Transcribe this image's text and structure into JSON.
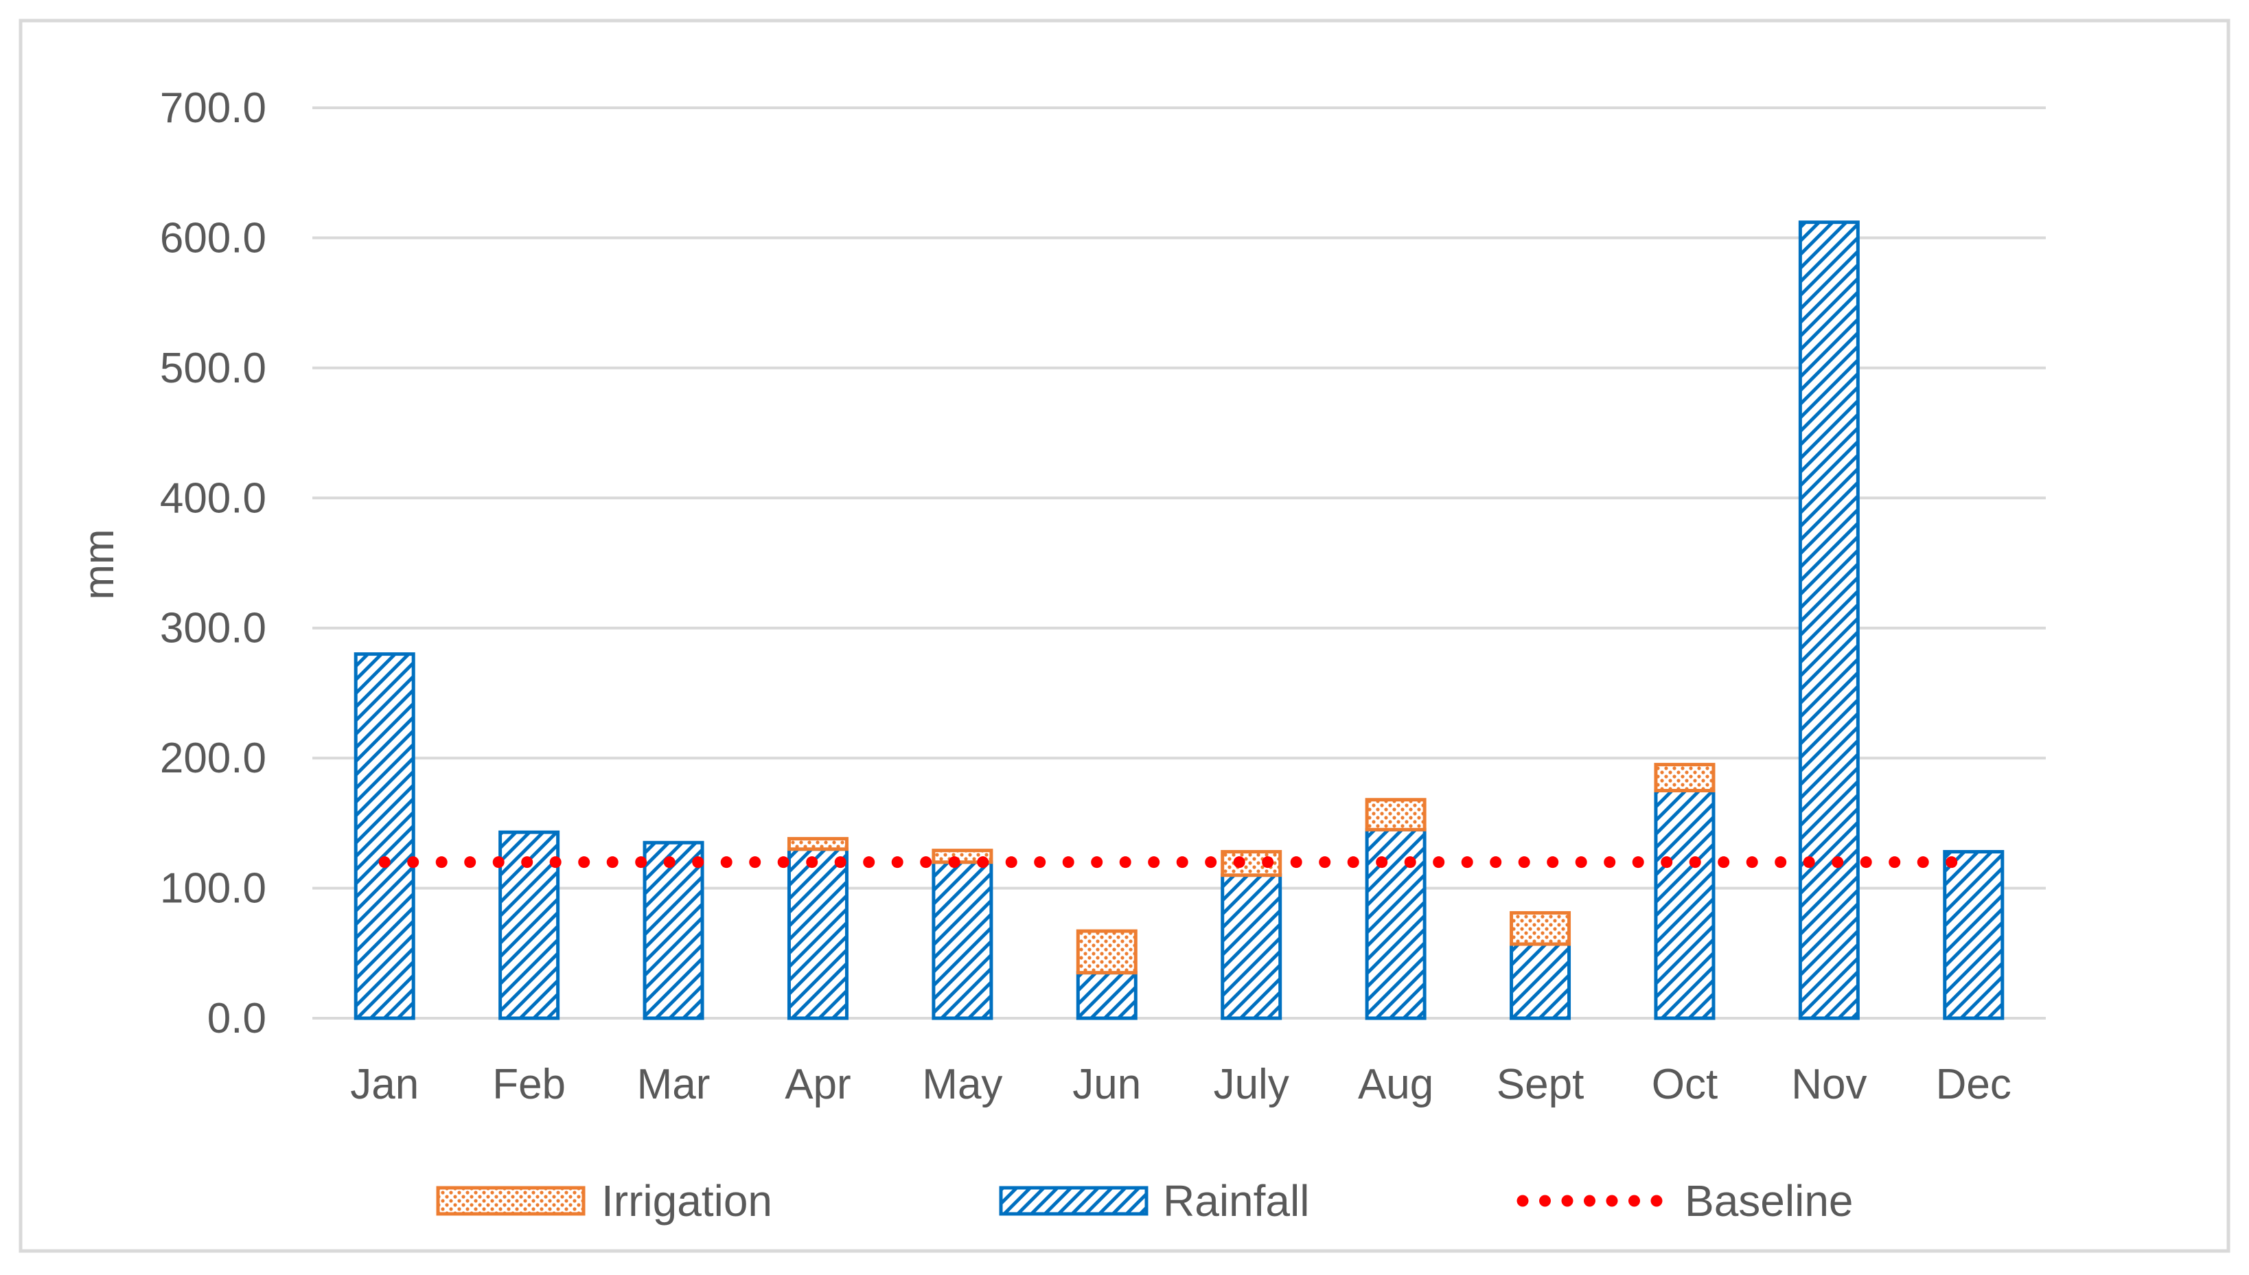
{
  "chart_data": {
    "type": "bar",
    "stacked": true,
    "categories": [
      "Jan",
      "Feb",
      "Mar",
      "Apr",
      "May",
      "Jun",
      "July",
      "Aug",
      "Sept",
      "Oct",
      "Nov",
      "Dec"
    ],
    "series": [
      {
        "name": "Rainfall",
        "kind": "bar",
        "color": "#0070C0",
        "pattern": "diagonal-hatch",
        "values": [
          280,
          143,
          135,
          130,
          120,
          35,
          110,
          145,
          57,
          175,
          612,
          128
        ]
      },
      {
        "name": "Irrigation",
        "kind": "bar",
        "color": "#ED7D31",
        "pattern": "dots",
        "values": [
          0,
          0,
          0,
          8,
          9,
          32,
          18,
          23,
          24,
          20,
          0,
          0
        ]
      },
      {
        "name": "Baseline",
        "kind": "line",
        "color": "#FF0000",
        "style": "dotted",
        "values": [
          120,
          120,
          120,
          120,
          120,
          120,
          120,
          120,
          120,
          120,
          120,
          120
        ]
      }
    ],
    "title": "",
    "xlabel": "",
    "ylabel": "mm",
    "ylim": [
      0,
      700
    ],
    "yticks": [
      "0.0",
      "100.0",
      "200.0",
      "300.0",
      "400.0",
      "500.0",
      "600.0",
      "700.0"
    ],
    "grid": true,
    "legend": "bottom"
  }
}
